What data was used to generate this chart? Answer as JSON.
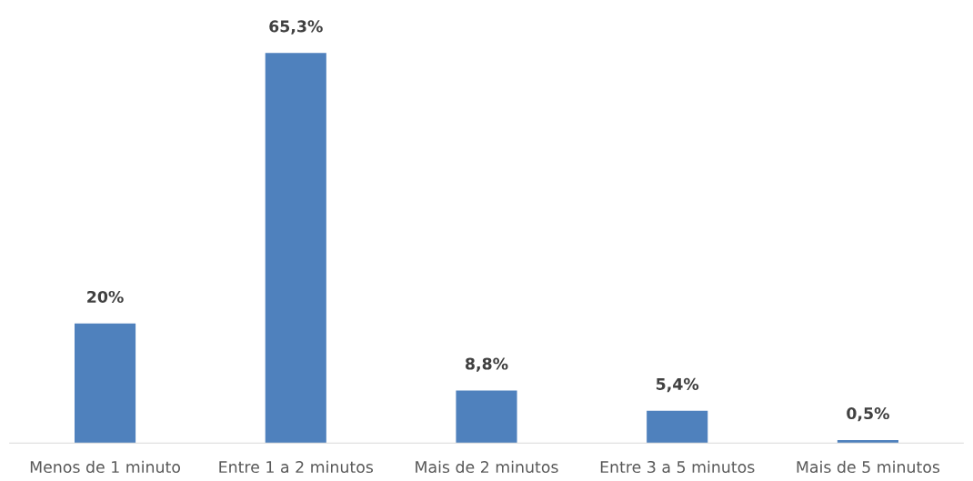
{
  "chart_data": {
    "type": "bar",
    "categories": [
      "Menos de 1 minuto",
      "Entre 1 a 2 minutos",
      "Mais de 2 minutos",
      "Entre 3 a 5 minutos",
      "Mais de 5 minutos"
    ],
    "values": [
      20,
      65.3,
      8.8,
      5.4,
      0.5
    ],
    "value_labels": [
      "20%",
      "65,3%",
      "8,8%",
      "5,4%",
      "0,5%"
    ],
    "color": "#4f81bd"
  }
}
